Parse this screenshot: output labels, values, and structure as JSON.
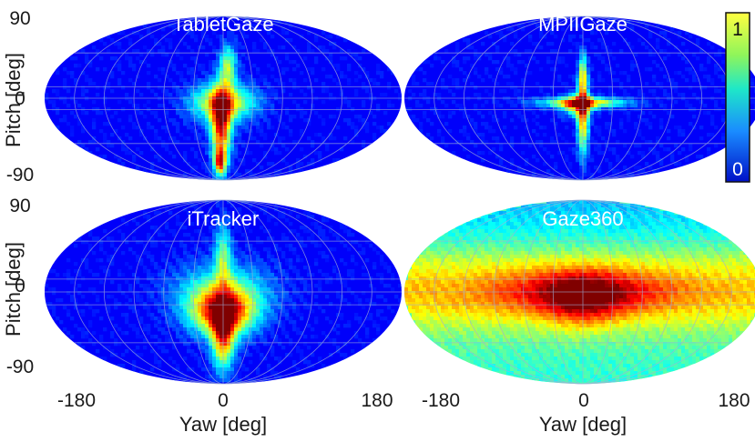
{
  "chart_data": {
    "type": "heatmap",
    "projection": "mollweide",
    "xlabel": "Yaw [deg]",
    "ylabel": "Pitch [deg]",
    "xlim": [
      -180,
      180
    ],
    "ylim": [
      -90,
      90
    ],
    "x_ticks": [
      "-180",
      "0",
      "180"
    ],
    "y_ticks": [
      "90",
      "0",
      "-90"
    ],
    "grid": true,
    "colormap": "jet",
    "colorbar": {
      "min_label": "0",
      "max_label": "1",
      "position": "right"
    },
    "panels": [
      {
        "title": "TabletGaze",
        "background_level": 0.12,
        "blobs": [
          {
            "yaw": -2,
            "pitch": -30,
            "sigma_yaw": 7,
            "sigma_pitch": 28,
            "weight": 0.75
          },
          {
            "yaw": 0,
            "pitch": -5,
            "sigma_yaw": 22,
            "sigma_pitch": 14,
            "weight": 0.55
          },
          {
            "yaw": 5,
            "pitch": 35,
            "sigma_yaw": 6,
            "sigma_pitch": 16,
            "weight": 0.4
          },
          {
            "yaw": -3,
            "pitch": -70,
            "sigma_yaw": 4,
            "sigma_pitch": 10,
            "weight": 0.6
          }
        ]
      },
      {
        "title": "MPIIGaze",
        "background_level": 0.12,
        "blobs": [
          {
            "yaw": 0,
            "pitch": -5,
            "sigma_yaw": 30,
            "sigma_pitch": 4,
            "weight": 0.55
          },
          {
            "yaw": 0,
            "pitch": -20,
            "sigma_yaw": 4,
            "sigma_pitch": 28,
            "weight": 0.6
          },
          {
            "yaw": 0,
            "pitch": 25,
            "sigma_yaw": 3,
            "sigma_pitch": 16,
            "weight": 0.4
          },
          {
            "yaw": -5,
            "pitch": -8,
            "sigma_yaw": 10,
            "sigma_pitch": 8,
            "weight": 0.5
          }
        ]
      },
      {
        "title": "iTracker",
        "background_level": 0.12,
        "blobs": [
          {
            "yaw": 0,
            "pitch": -20,
            "sigma_yaw": 22,
            "sigma_pitch": 16,
            "weight": 0.7
          },
          {
            "yaw": 0,
            "pitch": -45,
            "sigma_yaw": 8,
            "sigma_pitch": 22,
            "weight": 0.6
          },
          {
            "yaw": 0,
            "pitch": 35,
            "sigma_yaw": 6,
            "sigma_pitch": 22,
            "weight": 0.35
          },
          {
            "yaw": 0,
            "pitch": 0,
            "sigma_yaw": 35,
            "sigma_pitch": 20,
            "weight": 0.3
          }
        ]
      },
      {
        "title": "Gaze360",
        "background_level": 0.45,
        "blobs": [
          {
            "yaw": 0,
            "pitch": 0,
            "sigma_yaw": 60,
            "sigma_pitch": 16,
            "weight": 0.3
          },
          {
            "yaw": 0,
            "pitch": -10,
            "sigma_yaw": 25,
            "sigma_pitch": 18,
            "weight": 0.2
          }
        ]
      }
    ]
  }
}
